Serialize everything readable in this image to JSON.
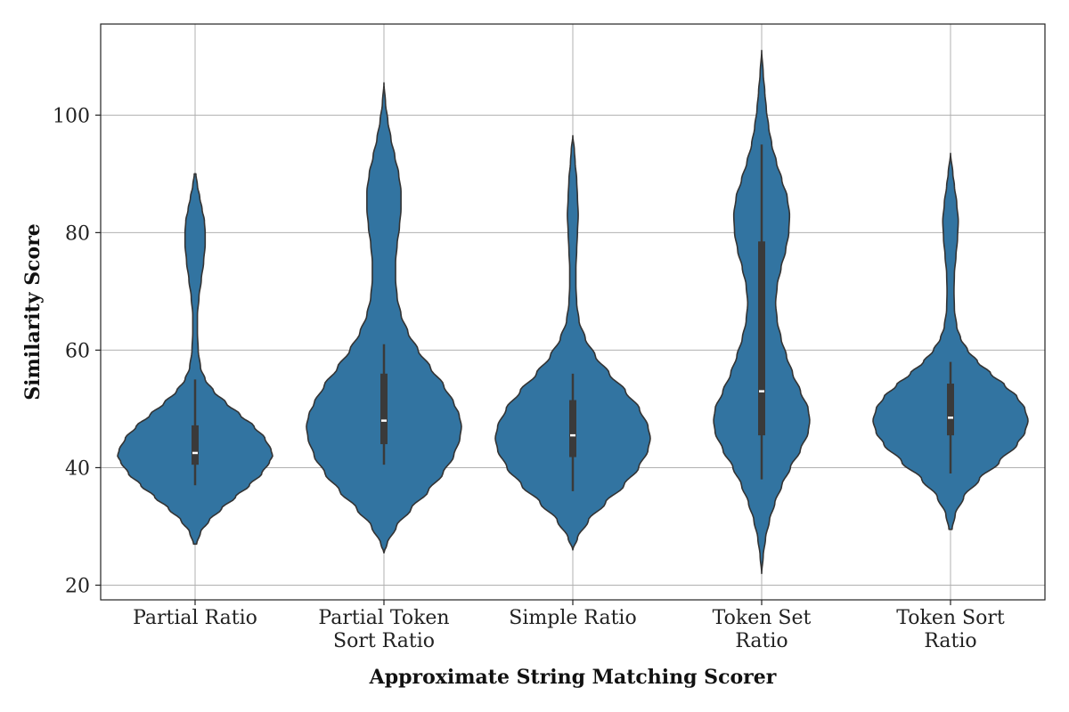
{
  "chart_data": {
    "type": "violin",
    "xlabel": "Approximate String Matching Scorer",
    "ylabel": "Similarity Score",
    "ylim": [
      17.5,
      115.5
    ],
    "yticks": [
      20,
      40,
      60,
      80,
      100
    ],
    "grid": true,
    "color": "#3274a1",
    "categories": [
      {
        "label_lines": [
          "Partial Ratio"
        ],
        "min": 27,
        "max": 90,
        "whisker_low": 37,
        "whisker_high": 55,
        "q1": 40.5,
        "q3": 47.2,
        "median": 42.5,
        "profile": [
          [
            27,
            0.02
          ],
          [
            29,
            0.07
          ],
          [
            31,
            0.18
          ],
          [
            33,
            0.34
          ],
          [
            35,
            0.52
          ],
          [
            37,
            0.7
          ],
          [
            39,
            0.86
          ],
          [
            41,
            0.96
          ],
          [
            42,
            1.0
          ],
          [
            43,
            0.98
          ],
          [
            45,
            0.9
          ],
          [
            47,
            0.76
          ],
          [
            49,
            0.58
          ],
          [
            51,
            0.4
          ],
          [
            53,
            0.24
          ],
          [
            55,
            0.13
          ],
          [
            57,
            0.07
          ],
          [
            60,
            0.04
          ],
          [
            63,
            0.03
          ],
          [
            66,
            0.03
          ],
          [
            69,
            0.05
          ],
          [
            72,
            0.08
          ],
          [
            75,
            0.11
          ],
          [
            78,
            0.13
          ],
          [
            80,
            0.13
          ],
          [
            82,
            0.12
          ],
          [
            84,
            0.09
          ],
          [
            86,
            0.06
          ],
          [
            88,
            0.03
          ],
          [
            90,
            0.01
          ]
        ]
      },
      {
        "label_lines": [
          "Partial Token",
          "Sort Ratio"
        ],
        "min": 25.5,
        "max": 105.5,
        "whisker_low": 40.5,
        "whisker_high": 61,
        "q1": 44,
        "q3": 56,
        "median": 48,
        "profile": [
          [
            25.5,
            0.0
          ],
          [
            27,
            0.04
          ],
          [
            30,
            0.16
          ],
          [
            33,
            0.35
          ],
          [
            36,
            0.57
          ],
          [
            39,
            0.76
          ],
          [
            42,
            0.9
          ],
          [
            45,
            0.98
          ],
          [
            47,
            1.0
          ],
          [
            49,
            0.97
          ],
          [
            51,
            0.9
          ],
          [
            54,
            0.77
          ],
          [
            57,
            0.6
          ],
          [
            60,
            0.44
          ],
          [
            63,
            0.31
          ],
          [
            66,
            0.22
          ],
          [
            69,
            0.17
          ],
          [
            72,
            0.15
          ],
          [
            75,
            0.15
          ],
          [
            78,
            0.17
          ],
          [
            81,
            0.2
          ],
          [
            84,
            0.22
          ],
          [
            87,
            0.22
          ],
          [
            90,
            0.19
          ],
          [
            93,
            0.14
          ],
          [
            96,
            0.09
          ],
          [
            99,
            0.05
          ],
          [
            102,
            0.02
          ],
          [
            105.5,
            0.0
          ]
        ]
      },
      {
        "label_lines": [
          "Simple Ratio"
        ],
        "min": 26,
        "max": 96.5,
        "whisker_low": 36,
        "whisker_high": 56,
        "q1": 41.8,
        "q3": 51.5,
        "median": 45.5,
        "profile": [
          [
            26,
            0.0
          ],
          [
            28,
            0.06
          ],
          [
            31,
            0.2
          ],
          [
            34,
            0.42
          ],
          [
            37,
            0.66
          ],
          [
            40,
            0.85
          ],
          [
            43,
            0.97
          ],
          [
            45,
            1.0
          ],
          [
            47,
            0.97
          ],
          [
            50,
            0.86
          ],
          [
            53,
            0.68
          ],
          [
            56,
            0.47
          ],
          [
            59,
            0.29
          ],
          [
            62,
            0.16
          ],
          [
            65,
            0.08
          ],
          [
            68,
            0.05
          ],
          [
            71,
            0.04
          ],
          [
            74,
            0.04
          ],
          [
            77,
            0.05
          ],
          [
            80,
            0.06
          ],
          [
            83,
            0.07
          ],
          [
            86,
            0.06
          ],
          [
            89,
            0.05
          ],
          [
            92,
            0.03
          ],
          [
            94,
            0.02
          ],
          [
            96.5,
            0.0
          ]
        ]
      },
      {
        "label_lines": [
          "Token Set",
          "Ratio"
        ],
        "min": 22,
        "max": 111,
        "whisker_low": 38,
        "whisker_high": 95,
        "q1": 45.5,
        "q3": 78.5,
        "median": 53,
        "profile": [
          [
            22,
            0.0
          ],
          [
            25,
            0.02
          ],
          [
            28,
            0.05
          ],
          [
            31,
            0.1
          ],
          [
            34,
            0.17
          ],
          [
            37,
            0.26
          ],
          [
            40,
            0.37
          ],
          [
            43,
            0.5
          ],
          [
            46,
            0.6
          ],
          [
            48,
            0.62
          ],
          [
            50,
            0.6
          ],
          [
            53,
            0.5
          ],
          [
            56,
            0.4
          ],
          [
            59,
            0.32
          ],
          [
            62,
            0.25
          ],
          [
            65,
            0.2
          ],
          [
            68,
            0.18
          ],
          [
            71,
            0.2
          ],
          [
            74,
            0.25
          ],
          [
            77,
            0.31
          ],
          [
            80,
            0.35
          ],
          [
            83,
            0.36
          ],
          [
            86,
            0.33
          ],
          [
            89,
            0.26
          ],
          [
            92,
            0.19
          ],
          [
            95,
            0.13
          ],
          [
            98,
            0.09
          ],
          [
            101,
            0.06
          ],
          [
            104,
            0.04
          ],
          [
            107,
            0.02
          ],
          [
            111,
            0.0
          ]
        ]
      },
      {
        "label_lines": [
          "Token Sort",
          "Ratio"
        ],
        "min": 29.5,
        "max": 93.5,
        "whisker_low": 39,
        "whisker_high": 58,
        "q1": 45.5,
        "q3": 54.3,
        "median": 48.5,
        "profile": [
          [
            29.5,
            0.02
          ],
          [
            32,
            0.06
          ],
          [
            35,
            0.17
          ],
          [
            38,
            0.37
          ],
          [
            41,
            0.63
          ],
          [
            44,
            0.86
          ],
          [
            46,
            0.96
          ],
          [
            48,
            1.0
          ],
          [
            50,
            0.96
          ],
          [
            52,
            0.86
          ],
          [
            54,
            0.7
          ],
          [
            56,
            0.52
          ],
          [
            58,
            0.35
          ],
          [
            60,
            0.22
          ],
          [
            62,
            0.13
          ],
          [
            64,
            0.08
          ],
          [
            67,
            0.05
          ],
          [
            70,
            0.045
          ],
          [
            73,
            0.05
          ],
          [
            76,
            0.07
          ],
          [
            79,
            0.09
          ],
          [
            82,
            0.1
          ],
          [
            85,
            0.08
          ],
          [
            88,
            0.05
          ],
          [
            90,
            0.03
          ],
          [
            93.5,
            0.0
          ]
        ]
      }
    ]
  }
}
